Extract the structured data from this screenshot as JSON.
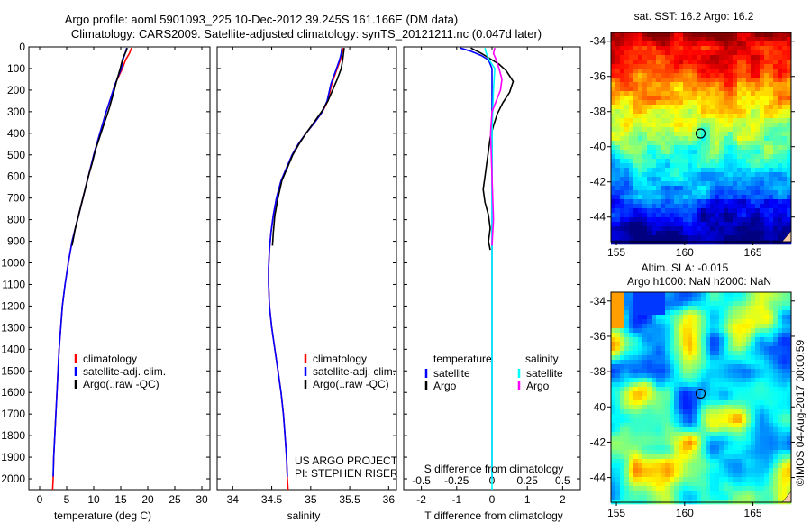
{
  "title": {
    "line1": "Argo profile: aoml 5901093_225 10-Dec-2012 39.245S 161.166E (DM data)",
    "line2": "Climatology: CARS2009. Satellite-adjusted climatology: synTS_20121211.nc (0.047d later)"
  },
  "colors": {
    "climatology": "#ff0000",
    "satellite": "#0000ff",
    "argo": "#000000",
    "sat_salinity": "#00ffff",
    "argo_salinity": "#ff00ff"
  },
  "depth_axis": {
    "ylim": [
      0,
      2050
    ],
    "ticks": [
      "0",
      "100",
      "200",
      "300",
      "400",
      "500",
      "600",
      "700",
      "800",
      "900",
      "1000",
      "1100",
      "1200",
      "1300",
      "1400",
      "1500",
      "1600",
      "1700",
      "1800",
      "1900",
      "2000"
    ]
  },
  "chart_data": [
    {
      "type": "line",
      "id": "temperature",
      "xlabel": "temperature (deg C)",
      "xlim": [
        -2,
        31.5
      ],
      "x_ticks": [
        "0",
        "5",
        "10",
        "15",
        "20",
        "25",
        "30"
      ],
      "legend": [
        "climatology",
        "satellite-adj. clim.",
        "Argo(..raw -QC)"
      ],
      "series": [
        {
          "name": "climatology",
          "color": "red",
          "points": [
            [
              17.0,
              5
            ],
            [
              16.6,
              30
            ],
            [
              15.9,
              60
            ],
            [
              15.3,
              100
            ],
            [
              14.0,
              170
            ],
            [
              13.1,
              240
            ],
            [
              12.3,
              300
            ],
            [
              11.6,
              360
            ],
            [
              10.9,
              420
            ],
            [
              10.0,
              500
            ],
            [
              9.2,
              580
            ],
            [
              8.4,
              660
            ],
            [
              7.6,
              740
            ],
            [
              6.8,
              820
            ],
            [
              6.0,
              900
            ],
            [
              5.3,
              1000
            ],
            [
              4.7,
              1100
            ],
            [
              4.2,
              1200
            ],
            [
              3.9,
              1300
            ],
            [
              3.6,
              1400
            ],
            [
              3.4,
              1500
            ],
            [
              3.2,
              1600
            ],
            [
              3.0,
              1700
            ],
            [
              2.8,
              1800
            ],
            [
              2.6,
              1900
            ],
            [
              2.5,
              2000
            ],
            [
              2.4,
              2050
            ]
          ]
        },
        {
          "name": "satellite-adj. clim.",
          "color": "blue",
          "points": [
            [
              16.1,
              5
            ],
            [
              15.8,
              30
            ],
            [
              15.4,
              60
            ],
            [
              15.1,
              100
            ],
            [
              14.0,
              170
            ],
            [
              13.1,
              240
            ],
            [
              12.3,
              300
            ],
            [
              11.6,
              360
            ],
            [
              10.9,
              420
            ],
            [
              10.0,
              500
            ],
            [
              9.2,
              580
            ],
            [
              8.4,
              660
            ],
            [
              7.6,
              740
            ],
            [
              6.8,
              820
            ],
            [
              6.0,
              900
            ],
            [
              5.3,
              1000
            ],
            [
              4.7,
              1100
            ],
            [
              4.2,
              1200
            ],
            [
              3.9,
              1300
            ],
            [
              3.6,
              1400
            ],
            [
              3.4,
              1500
            ],
            [
              3.2,
              1600
            ],
            [
              3.0,
              1700
            ],
            [
              2.8,
              1800
            ],
            [
              2.6,
              1900
            ],
            [
              2.5,
              1990
            ]
          ]
        },
        {
          "name": "Argo(..raw -QC)",
          "color": "black",
          "points": [
            [
              16.2,
              5
            ],
            [
              16.0,
              20
            ],
            [
              15.5,
              45
            ],
            [
              15.2,
              70
            ],
            [
              14.9,
              100
            ],
            [
              14.2,
              160
            ],
            [
              13.6,
              220
            ],
            [
              12.8,
              290
            ],
            [
              12.0,
              350
            ],
            [
              11.2,
              410
            ],
            [
              10.4,
              470
            ],
            [
              9.7,
              540
            ],
            [
              9.0,
              600
            ],
            [
              8.2,
              680
            ],
            [
              7.4,
              760
            ],
            [
              6.6,
              840
            ],
            [
              6.0,
              920
            ]
          ]
        }
      ]
    },
    {
      "type": "line",
      "id": "salinity",
      "xlabel": "salinity",
      "xlim": [
        33.8,
        36.1
      ],
      "x_ticks": [
        "34",
        "34.5",
        "35",
        "35.5",
        "36"
      ],
      "legend": [
        "climatology",
        "satellite-adj. clim.",
        "Argo(..raw -QC)"
      ],
      "annotations": [
        "US ARGO PROJECT",
        "PI: STEPHEN RISER"
      ],
      "series": [
        {
          "name": "climatology",
          "color": "red",
          "points": [
            [
              35.42,
              5
            ],
            [
              35.4,
              30
            ],
            [
              35.38,
              60
            ],
            [
              35.34,
              100
            ],
            [
              35.27,
              170
            ],
            [
              35.22,
              250
            ],
            [
              35.15,
              300
            ],
            [
              35.05,
              350
            ],
            [
              34.94,
              400
            ],
            [
              34.84,
              450
            ],
            [
              34.76,
              500
            ],
            [
              34.69,
              560
            ],
            [
              34.62,
              620
            ],
            [
              34.56,
              700
            ],
            [
              34.52,
              780
            ],
            [
              34.49,
              860
            ],
            [
              34.47,
              940
            ],
            [
              34.46,
              1020
            ],
            [
              34.46,
              1100
            ],
            [
              34.47,
              1200
            ],
            [
              34.5,
              1300
            ],
            [
              34.54,
              1400
            ],
            [
              34.58,
              1500
            ],
            [
              34.62,
              1600
            ],
            [
              34.65,
              1700
            ],
            [
              34.67,
              1800
            ],
            [
              34.69,
              1900
            ],
            [
              34.7,
              2000
            ],
            [
              34.71,
              2050
            ]
          ]
        },
        {
          "name": "satellite-adj. clim.",
          "color": "blue",
          "points": [
            [
              35.4,
              5
            ],
            [
              35.39,
              30
            ],
            [
              35.37,
              60
            ],
            [
              35.33,
              100
            ],
            [
              35.26,
              170
            ],
            [
              35.21,
              250
            ],
            [
              35.15,
              300
            ],
            [
              35.05,
              350
            ],
            [
              34.94,
              400
            ],
            [
              34.84,
              450
            ],
            [
              34.76,
              500
            ],
            [
              34.69,
              560
            ],
            [
              34.62,
              620
            ],
            [
              34.56,
              700
            ],
            [
              34.52,
              780
            ],
            [
              34.49,
              860
            ],
            [
              34.47,
              940
            ],
            [
              34.46,
              1020
            ],
            [
              34.46,
              1100
            ],
            [
              34.47,
              1200
            ],
            [
              34.5,
              1300
            ],
            [
              34.54,
              1400
            ],
            [
              34.58,
              1500
            ],
            [
              34.62,
              1600
            ],
            [
              34.65,
              1700
            ],
            [
              34.67,
              1800
            ],
            [
              34.69,
              1900
            ],
            [
              34.7,
              1990
            ]
          ]
        },
        {
          "name": "Argo(..raw -QC)",
          "color": "black",
          "points": [
            [
              35.43,
              5
            ],
            [
              35.42,
              30
            ],
            [
              35.41,
              60
            ],
            [
              35.39,
              100
            ],
            [
              35.34,
              150
            ],
            [
              35.28,
              200
            ],
            [
              35.22,
              250
            ],
            [
              35.14,
              300
            ],
            [
              35.04,
              350
            ],
            [
              34.94,
              400
            ],
            [
              34.85,
              450
            ],
            [
              34.77,
              500
            ],
            [
              34.7,
              560
            ],
            [
              34.63,
              620
            ],
            [
              34.58,
              700
            ],
            [
              34.54,
              780
            ],
            [
              34.52,
              860
            ],
            [
              34.51,
              920
            ]
          ]
        }
      ]
    },
    {
      "type": "line",
      "id": "difference",
      "xlabel": "T difference from climatology",
      "xlabel_top": "S difference from climatology",
      "xlim": [
        -2.5,
        2.5
      ],
      "x_ticks_bottom": [
        "-2",
        "-1",
        "0",
        "1",
        "2"
      ],
      "x_ticks_top": [
        "-0.5",
        "-0.25",
        "0",
        "0.25",
        "0.5"
      ],
      "legend": {
        "temperature_header": "temperature",
        "salinity_header": "salinity",
        "items": [
          {
            "label": "satellite",
            "color": "#0000ff",
            "column": "temperature"
          },
          {
            "label": "Argo",
            "color": "#000000",
            "column": "temperature"
          },
          {
            "label": "satellite",
            "color": "#00ffff",
            "column": "salinity"
          },
          {
            "label": "Argo",
            "color": "#ff00ff",
            "column": "salinity"
          }
        ]
      },
      "series": [
        {
          "name": "T satellite",
          "color": "blue",
          "points": [
            [
              -0.9,
              5
            ],
            [
              -0.6,
              20
            ],
            [
              -0.3,
              40
            ],
            [
              -0.1,
              60
            ],
            [
              0,
              100
            ],
            [
              0,
              2000
            ]
          ]
        },
        {
          "name": "T Argo",
          "color": "black",
          "points": [
            [
              -0.6,
              5
            ],
            [
              -0.3,
              30
            ],
            [
              -0.1,
              50
            ],
            [
              0.2,
              80
            ],
            [
              0.4,
              110
            ],
            [
              0.6,
              160
            ],
            [
              0.5,
              210
            ],
            [
              0.3,
              260
            ],
            [
              0.15,
              310
            ],
            [
              0.05,
              360
            ],
            [
              -0.05,
              420
            ],
            [
              -0.1,
              480
            ],
            [
              -0.15,
              540
            ],
            [
              -0.2,
              600
            ],
            [
              -0.25,
              660
            ],
            [
              -0.2,
              720
            ],
            [
              -0.1,
              780
            ],
            [
              -0.05,
              840
            ],
            [
              -0.1,
              900
            ],
            [
              -0.05,
              940
            ]
          ]
        },
        {
          "name": "S satellite",
          "color": "cyan",
          "points": [
            [
              -0.05,
              5
            ],
            [
              -0.04,
              30
            ],
            [
              -0.02,
              60
            ],
            [
              0.02,
              100
            ],
            [
              0.01,
              200
            ],
            [
              0.0,
              400
            ],
            [
              0.0,
              2050
            ]
          ]
        },
        {
          "name": "S Argo",
          "color": "magenta",
          "points": [
            [
              0.02,
              5
            ],
            [
              0.01,
              30
            ],
            [
              0.03,
              60
            ],
            [
              0.05,
              100
            ],
            [
              0.07,
              150
            ],
            [
              0.06,
              200
            ],
            [
              0.03,
              250
            ],
            [
              0.0,
              300
            ],
            [
              -0.01,
              400
            ],
            [
              0.0,
              600
            ],
            [
              0.01,
              800
            ],
            [
              0.0,
              920
            ]
          ]
        }
      ]
    },
    {
      "type": "heatmap",
      "id": "sst_map",
      "title": "sat. SST: 16.2 Argo: 16.2",
      "xlim": [
        154.6,
        167.8
      ],
      "ylim": [
        -45.4,
        -33.5
      ],
      "x_ticks": [
        "155",
        "160",
        "165"
      ],
      "y_ticks": [
        "-34",
        "-36",
        "-38",
        "-40",
        "-42",
        "-44"
      ],
      "marker": {
        "lon": 161.166,
        "lat": -39.245
      }
    },
    {
      "type": "heatmap",
      "id": "sla_map",
      "title_line1": "Altim. SLA: -0.015",
      "title_line2": "Argo h1000: NaN h2000: NaN",
      "xlim": [
        154.6,
        167.8
      ],
      "ylim": [
        -45.4,
        -33.5
      ],
      "x_ticks": [
        "155",
        "160",
        "165"
      ],
      "y_ticks": [
        "-34",
        "-36",
        "-38",
        "-40",
        "-42",
        "-44"
      ],
      "marker": {
        "lon": 161.166,
        "lat": -39.245
      }
    }
  ],
  "credit": "©IMOS 04-Aug-2017 00:00:59"
}
